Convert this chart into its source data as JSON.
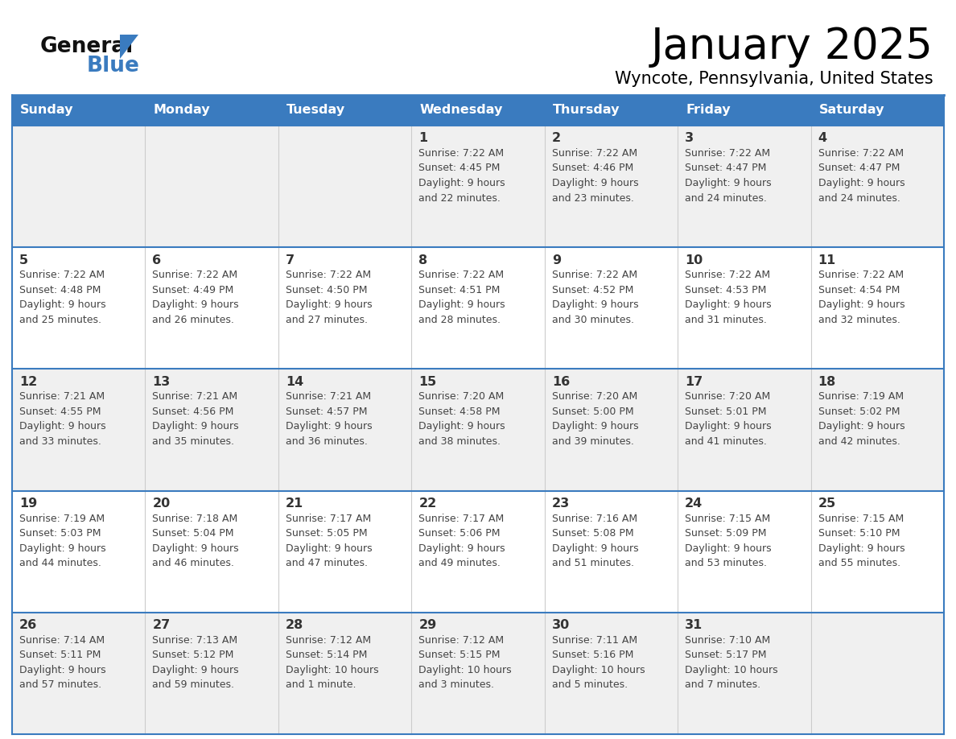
{
  "title": "January 2025",
  "subtitle": "Wyncote, Pennsylvania, United States",
  "header_bg_color": "#3a7bbf",
  "header_text_color": "#ffffff",
  "cell_bg_odd": "#f0f0f0",
  "cell_bg_even": "#ffffff",
  "day_number_color": "#333333",
  "cell_text_color": "#444444",
  "border_color": "#3a7bbf",
  "logo_general_color": "#111111",
  "logo_blue_color": "#3a7bbf",
  "logo_triangle_color": "#3a7bbf",
  "days_of_week": [
    "Sunday",
    "Monday",
    "Tuesday",
    "Wednesday",
    "Thursday",
    "Friday",
    "Saturday"
  ],
  "weeks": [
    [
      {
        "day": null,
        "info": null
      },
      {
        "day": null,
        "info": null
      },
      {
        "day": null,
        "info": null
      },
      {
        "day": 1,
        "info": "Sunrise: 7:22 AM\nSunset: 4:45 PM\nDaylight: 9 hours\nand 22 minutes."
      },
      {
        "day": 2,
        "info": "Sunrise: 7:22 AM\nSunset: 4:46 PM\nDaylight: 9 hours\nand 23 minutes."
      },
      {
        "day": 3,
        "info": "Sunrise: 7:22 AM\nSunset: 4:47 PM\nDaylight: 9 hours\nand 24 minutes."
      },
      {
        "day": 4,
        "info": "Sunrise: 7:22 AM\nSunset: 4:47 PM\nDaylight: 9 hours\nand 24 minutes."
      }
    ],
    [
      {
        "day": 5,
        "info": "Sunrise: 7:22 AM\nSunset: 4:48 PM\nDaylight: 9 hours\nand 25 minutes."
      },
      {
        "day": 6,
        "info": "Sunrise: 7:22 AM\nSunset: 4:49 PM\nDaylight: 9 hours\nand 26 minutes."
      },
      {
        "day": 7,
        "info": "Sunrise: 7:22 AM\nSunset: 4:50 PM\nDaylight: 9 hours\nand 27 minutes."
      },
      {
        "day": 8,
        "info": "Sunrise: 7:22 AM\nSunset: 4:51 PM\nDaylight: 9 hours\nand 28 minutes."
      },
      {
        "day": 9,
        "info": "Sunrise: 7:22 AM\nSunset: 4:52 PM\nDaylight: 9 hours\nand 30 minutes."
      },
      {
        "day": 10,
        "info": "Sunrise: 7:22 AM\nSunset: 4:53 PM\nDaylight: 9 hours\nand 31 minutes."
      },
      {
        "day": 11,
        "info": "Sunrise: 7:22 AM\nSunset: 4:54 PM\nDaylight: 9 hours\nand 32 minutes."
      }
    ],
    [
      {
        "day": 12,
        "info": "Sunrise: 7:21 AM\nSunset: 4:55 PM\nDaylight: 9 hours\nand 33 minutes."
      },
      {
        "day": 13,
        "info": "Sunrise: 7:21 AM\nSunset: 4:56 PM\nDaylight: 9 hours\nand 35 minutes."
      },
      {
        "day": 14,
        "info": "Sunrise: 7:21 AM\nSunset: 4:57 PM\nDaylight: 9 hours\nand 36 minutes."
      },
      {
        "day": 15,
        "info": "Sunrise: 7:20 AM\nSunset: 4:58 PM\nDaylight: 9 hours\nand 38 minutes."
      },
      {
        "day": 16,
        "info": "Sunrise: 7:20 AM\nSunset: 5:00 PM\nDaylight: 9 hours\nand 39 minutes."
      },
      {
        "day": 17,
        "info": "Sunrise: 7:20 AM\nSunset: 5:01 PM\nDaylight: 9 hours\nand 41 minutes."
      },
      {
        "day": 18,
        "info": "Sunrise: 7:19 AM\nSunset: 5:02 PM\nDaylight: 9 hours\nand 42 minutes."
      }
    ],
    [
      {
        "day": 19,
        "info": "Sunrise: 7:19 AM\nSunset: 5:03 PM\nDaylight: 9 hours\nand 44 minutes."
      },
      {
        "day": 20,
        "info": "Sunrise: 7:18 AM\nSunset: 5:04 PM\nDaylight: 9 hours\nand 46 minutes."
      },
      {
        "day": 21,
        "info": "Sunrise: 7:17 AM\nSunset: 5:05 PM\nDaylight: 9 hours\nand 47 minutes."
      },
      {
        "day": 22,
        "info": "Sunrise: 7:17 AM\nSunset: 5:06 PM\nDaylight: 9 hours\nand 49 minutes."
      },
      {
        "day": 23,
        "info": "Sunrise: 7:16 AM\nSunset: 5:08 PM\nDaylight: 9 hours\nand 51 minutes."
      },
      {
        "day": 24,
        "info": "Sunrise: 7:15 AM\nSunset: 5:09 PM\nDaylight: 9 hours\nand 53 minutes."
      },
      {
        "day": 25,
        "info": "Sunrise: 7:15 AM\nSunset: 5:10 PM\nDaylight: 9 hours\nand 55 minutes."
      }
    ],
    [
      {
        "day": 26,
        "info": "Sunrise: 7:14 AM\nSunset: 5:11 PM\nDaylight: 9 hours\nand 57 minutes."
      },
      {
        "day": 27,
        "info": "Sunrise: 7:13 AM\nSunset: 5:12 PM\nDaylight: 9 hours\nand 59 minutes."
      },
      {
        "day": 28,
        "info": "Sunrise: 7:12 AM\nSunset: 5:14 PM\nDaylight: 10 hours\nand 1 minute."
      },
      {
        "day": 29,
        "info": "Sunrise: 7:12 AM\nSunset: 5:15 PM\nDaylight: 10 hours\nand 3 minutes."
      },
      {
        "day": 30,
        "info": "Sunrise: 7:11 AM\nSunset: 5:16 PM\nDaylight: 10 hours\nand 5 minutes."
      },
      {
        "day": 31,
        "info": "Sunrise: 7:10 AM\nSunset: 5:17 PM\nDaylight: 10 hours\nand 7 minutes."
      },
      {
        "day": null,
        "info": null
      }
    ]
  ]
}
